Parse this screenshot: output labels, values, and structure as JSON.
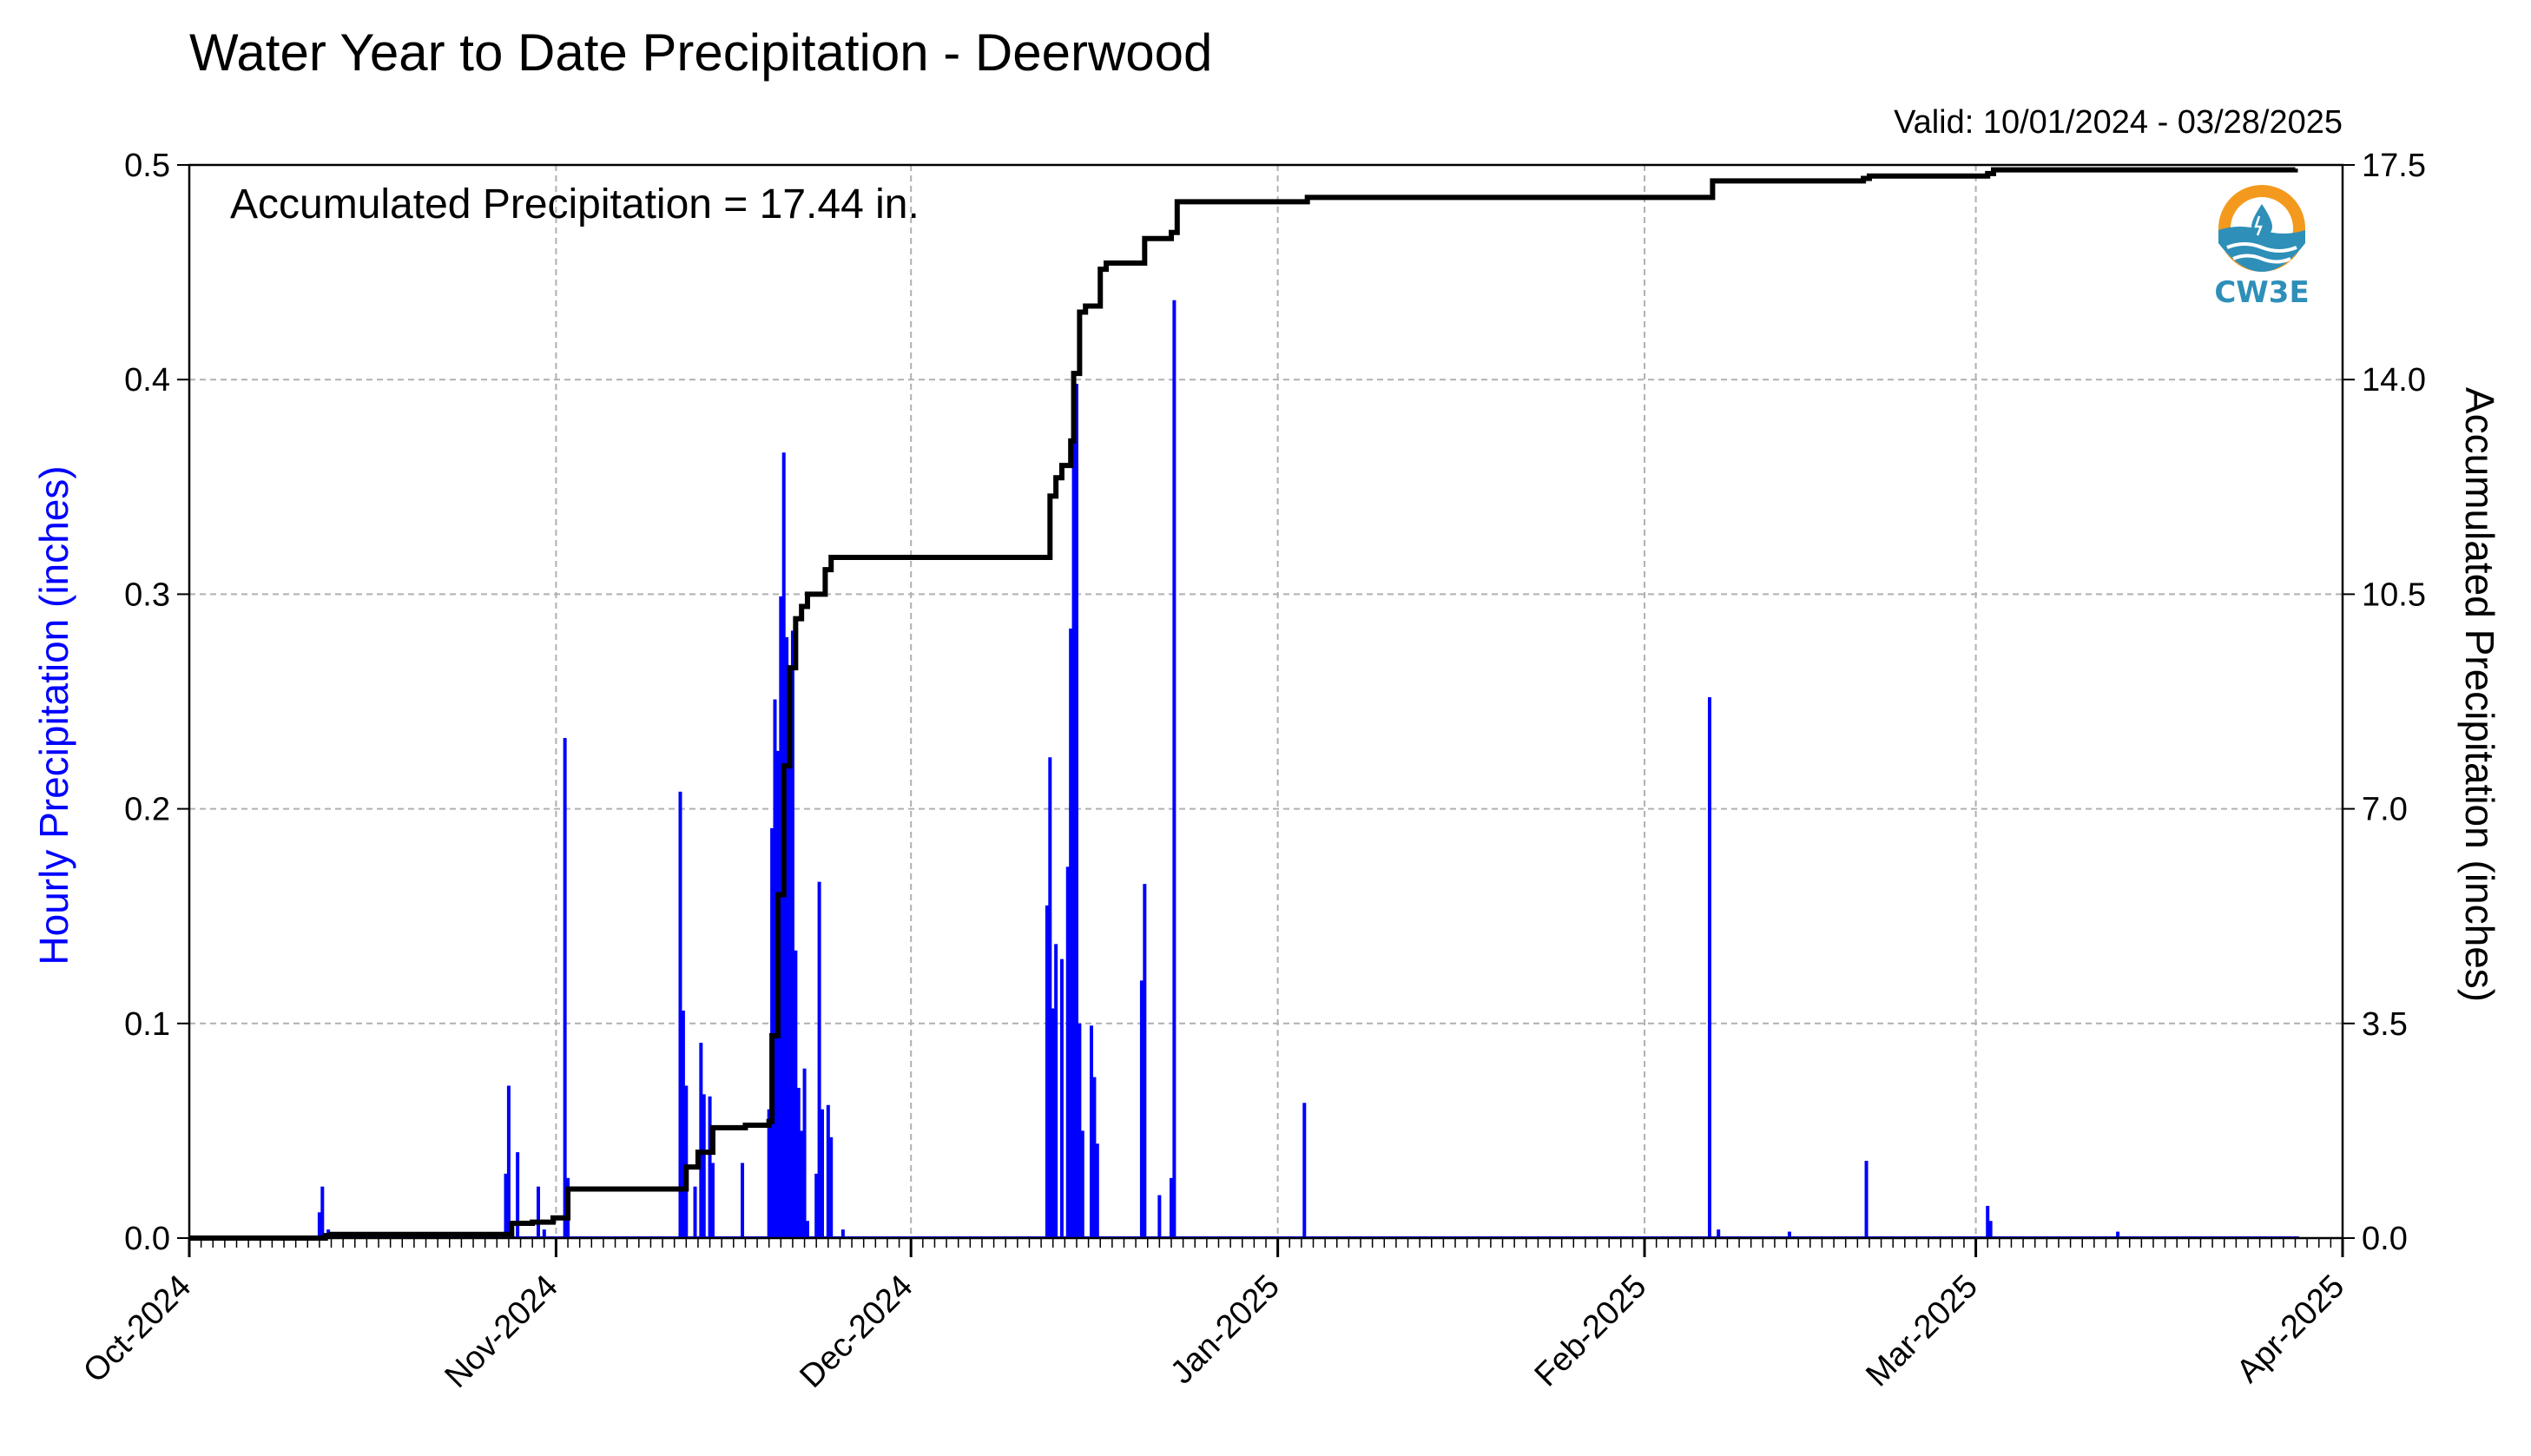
{
  "title": "Water Year to Date Precipitation - Deerwood",
  "valid_text": "Valid: 10/01/2024 - 03/28/2025",
  "accumulated_text": "Accumulated Precipitation = 17.44 in.",
  "logo_text": "CW3E",
  "colors": {
    "hourly": "#0000ff",
    "accumulated": "#000000",
    "grid": "#b0b0b0",
    "logo_orange": "#f39a1e",
    "logo_blue": "#2e8fb8"
  },
  "chart_data": {
    "type": "bar",
    "title": "Water Year to Date Precipitation - Deerwood",
    "xlabel": "",
    "x_range": [
      "2024-10-01",
      "2025-04-01"
    ],
    "x_ticks": [
      {
        "date": "2024-10-01",
        "label": "Oct-2024"
      },
      {
        "date": "2024-11-01",
        "label": "Nov-2024"
      },
      {
        "date": "2024-12-01",
        "label": "Dec-2024"
      },
      {
        "date": "2025-01-01",
        "label": "Jan-2025"
      },
      {
        "date": "2025-02-01",
        "label": "Feb-2025"
      },
      {
        "date": "2025-03-01",
        "label": "Mar-2025"
      },
      {
        "date": "2025-04-01",
        "label": "Apr-2025"
      }
    ],
    "ylabel_left": "Hourly Precipitation (inches)",
    "ylim_left": [
      0,
      0.5
    ],
    "yticks_left": [
      "0.0",
      "0.1",
      "0.2",
      "0.3",
      "0.4",
      "0.5"
    ],
    "ylabel_right": "Accumulated Precipitation (inches)",
    "ylim_right": [
      0,
      17.5
    ],
    "yticks_right": [
      "0.0",
      "3.5",
      "7.0",
      "10.5",
      "14.0",
      "17.5"
    ],
    "grid": true,
    "series": [
      {
        "kind": "bar",
        "axis": "left",
        "values": [
          [
            "2024-10-12T00:00",
            0.012
          ],
          [
            "2024-10-12T06:00",
            0.024
          ],
          [
            "2024-10-12T18:00",
            0.004
          ],
          [
            "2024-10-27T18:00",
            0.03
          ],
          [
            "2024-10-28T00:00",
            0.071
          ],
          [
            "2024-10-28T18:00",
            0.04
          ],
          [
            "2024-10-30T12:00",
            0.024
          ],
          [
            "2024-10-31T00:00",
            0.004
          ],
          [
            "2024-11-01T18:00",
            0.233
          ],
          [
            "2024-11-02T00:00",
            0.028
          ],
          [
            "2024-11-11T12:00",
            0.208
          ],
          [
            "2024-11-11T18:00",
            0.106
          ],
          [
            "2024-11-12T00:00",
            0.071
          ],
          [
            "2024-11-12T18:00",
            0.024
          ],
          [
            "2024-11-13T06:00",
            0.091
          ],
          [
            "2024-11-13T12:00",
            0.067
          ],
          [
            "2024-11-14T00:00",
            0.066
          ],
          [
            "2024-11-14T06:00",
            0.035
          ],
          [
            "2024-11-16T18:00",
            0.035
          ],
          [
            "2024-11-19T00:00",
            0.06
          ],
          [
            "2024-11-19T06:00",
            0.191
          ],
          [
            "2024-11-19T12:00",
            0.251
          ],
          [
            "2024-11-19T18:00",
            0.227
          ],
          [
            "2024-11-20T00:00",
            0.299
          ],
          [
            "2024-11-20T06:00",
            0.366
          ],
          [
            "2024-11-20T12:00",
            0.28
          ],
          [
            "2024-11-20T18:00",
            0.234
          ],
          [
            "2024-11-21T00:00",
            0.283
          ],
          [
            "2024-11-21T06:00",
            0.134
          ],
          [
            "2024-11-21T12:00",
            0.07
          ],
          [
            "2024-11-21T18:00",
            0.05
          ],
          [
            "2024-11-22T00:00",
            0.079
          ],
          [
            "2024-11-22T06:00",
            0.008
          ],
          [
            "2024-11-23T00:00",
            0.03
          ],
          [
            "2024-11-23T06:00",
            0.166
          ],
          [
            "2024-11-23T12:00",
            0.06
          ],
          [
            "2024-11-24T00:00",
            0.062
          ],
          [
            "2024-11-24T06:00",
            0.047
          ],
          [
            "2024-11-25T06:00",
            0.004
          ],
          [
            "2024-12-12T12:00",
            0.155
          ],
          [
            "2024-12-12T18:00",
            0.224
          ],
          [
            "2024-12-13T00:00",
            0.107
          ],
          [
            "2024-12-13T06:00",
            0.137
          ],
          [
            "2024-12-13T18:00",
            0.13
          ],
          [
            "2024-12-14T06:00",
            0.173
          ],
          [
            "2024-12-14T12:00",
            0.284
          ],
          [
            "2024-12-14T18:00",
            0.39
          ],
          [
            "2024-12-15T00:00",
            0.398
          ],
          [
            "2024-12-15T06:00",
            0.1
          ],
          [
            "2024-12-15T12:00",
            0.05
          ],
          [
            "2024-12-16T06:00",
            0.099
          ],
          [
            "2024-12-16T12:00",
            0.075
          ],
          [
            "2024-12-16T18:00",
            0.044
          ],
          [
            "2024-12-20T12:00",
            0.12
          ],
          [
            "2024-12-20T18:00",
            0.165
          ],
          [
            "2024-12-22T00:00",
            0.02
          ],
          [
            "2024-12-23T00:00",
            0.028
          ],
          [
            "2024-12-23T06:00",
            0.437
          ],
          [
            "2025-01-03T06:00",
            0.063
          ],
          [
            "2025-02-06T12:00",
            0.252
          ],
          [
            "2025-02-07T06:00",
            0.004
          ],
          [
            "2025-02-13T06:00",
            0.003
          ],
          [
            "2025-02-19T18:00",
            0.036
          ],
          [
            "2025-03-02T00:00",
            0.015
          ],
          [
            "2025-03-02T06:00",
            0.008
          ],
          [
            "2025-03-13T00:00",
            0.003
          ]
        ]
      },
      {
        "kind": "line",
        "axis": "right",
        "values": [
          [
            "2024-10-01T00:00",
            0.0
          ],
          [
            "2024-10-12T00:00",
            0.0
          ],
          [
            "2024-10-12T12:00",
            0.04
          ],
          [
            "2024-10-13T00:00",
            0.06
          ],
          [
            "2024-10-27T18:00",
            0.06
          ],
          [
            "2024-10-28T06:00",
            0.24
          ],
          [
            "2024-10-30T00:00",
            0.26
          ],
          [
            "2024-10-31T18:00",
            0.33
          ],
          [
            "2024-11-02T00:00",
            0.8
          ],
          [
            "2024-11-11T12:00",
            0.8
          ],
          [
            "2024-11-12T00:00",
            1.16
          ],
          [
            "2024-11-13T00:00",
            1.4
          ],
          [
            "2024-11-14T06:00",
            1.8
          ],
          [
            "2024-11-17T00:00",
            1.84
          ],
          [
            "2024-11-19T00:00",
            1.9
          ],
          [
            "2024-11-19T06:00",
            3.3
          ],
          [
            "2024-11-19T18:00",
            5.6
          ],
          [
            "2024-11-20T06:00",
            7.7
          ],
          [
            "2024-11-20T18:00",
            9.3
          ],
          [
            "2024-11-21T06:00",
            10.1
          ],
          [
            "2024-11-21T18:00",
            10.3
          ],
          [
            "2024-11-22T06:00",
            10.5
          ],
          [
            "2024-11-23T06:00",
            10.5
          ],
          [
            "2024-11-23T18:00",
            10.9
          ],
          [
            "2024-11-24T06:00",
            11.1
          ],
          [
            "2024-12-12T12:00",
            11.1
          ],
          [
            "2024-12-12T18:00",
            12.1
          ],
          [
            "2024-12-13T06:00",
            12.4
          ],
          [
            "2024-12-13T18:00",
            12.6
          ],
          [
            "2024-12-14T12:00",
            13.0
          ],
          [
            "2024-12-14T18:00",
            14.1
          ],
          [
            "2024-12-15T06:00",
            15.1
          ],
          [
            "2024-12-15T18:00",
            15.2
          ],
          [
            "2024-12-16T12:00",
            15.2
          ],
          [
            "2024-12-17T00:00",
            15.8
          ],
          [
            "2024-12-17T12:00",
            15.9
          ],
          [
            "2024-12-20T12:00",
            15.9
          ],
          [
            "2024-12-20T18:00",
            16.3
          ],
          [
            "2024-12-22T00:00",
            16.3
          ],
          [
            "2024-12-23T00:00",
            16.4
          ],
          [
            "2024-12-23T12:00",
            16.9
          ],
          [
            "2025-01-03T00:00",
            16.9
          ],
          [
            "2025-01-03T12:00",
            16.97
          ],
          [
            "2025-02-06T12:00",
            16.97
          ],
          [
            "2025-02-06T18:00",
            17.24
          ],
          [
            "2025-02-19T12:00",
            17.28
          ],
          [
            "2025-02-20T00:00",
            17.32
          ],
          [
            "2025-03-02T00:00",
            17.36
          ],
          [
            "2025-03-02T12:00",
            17.42
          ],
          [
            "2025-03-28T00:00",
            17.44
          ]
        ]
      }
    ]
  }
}
